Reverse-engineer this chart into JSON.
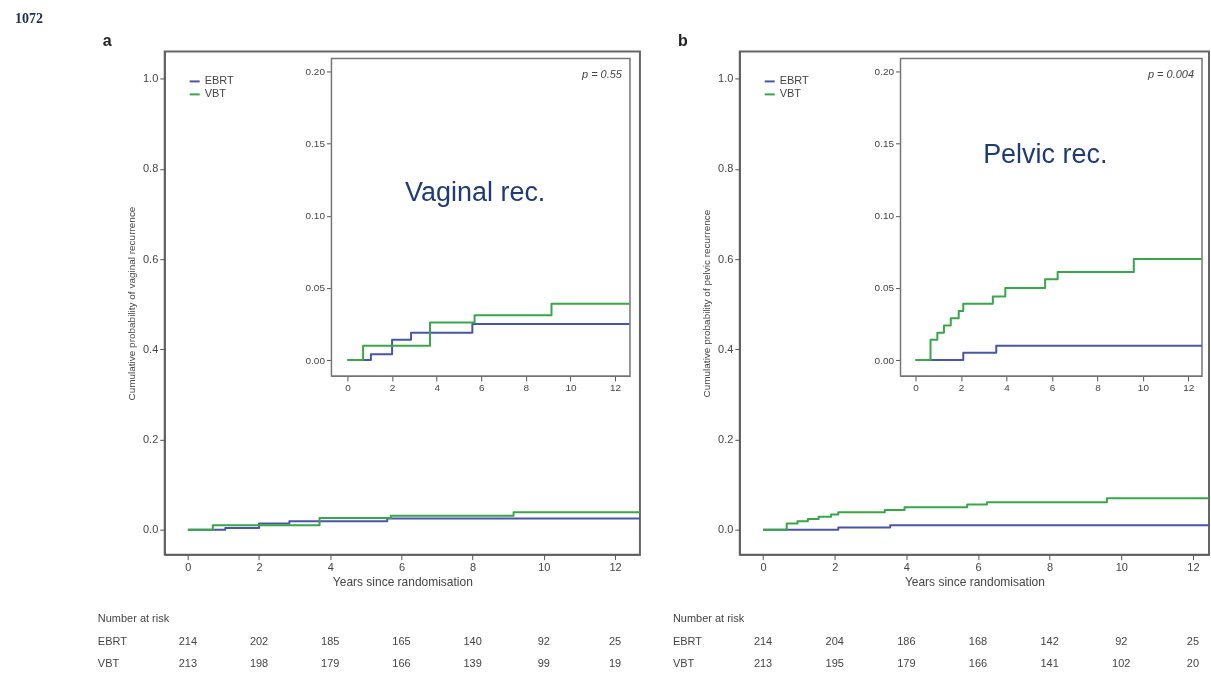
{
  "chart_data": [
    {
      "type": "step",
      "title": "a",
      "xlabel": "Years since randomisation",
      "ylabel": "Cumulative probability of vaginal recurrence",
      "xlim": [
        -0.65,
        12.7
      ],
      "ylim": [
        -0.055,
        1.06
      ],
      "xticks": [
        0,
        2,
        4,
        6,
        8,
        10,
        12
      ],
      "yticks": [
        {
          "value": 0,
          "label": "0.0"
        },
        {
          "value": 0.2,
          "label": "0.2"
        },
        {
          "value": 0.4,
          "label": "0.4"
        },
        {
          "value": 0.6,
          "label": "0.6"
        },
        {
          "value": 0.8,
          "label": "0.8"
        },
        {
          "value": 1,
          "label": "1.0"
        }
      ],
      "legend": "top left",
      "grid": false,
      "annotations": [
        "1072",
        "Number at risk",
        "EBRT",
        "214",
        "202",
        "185",
        "165",
        "140",
        "92",
        "25",
        "VBT",
        "213",
        "198",
        "179",
        "166",
        "139",
        "99",
        "19"
      ],
      "series": [
        {
          "name": "EBRT",
          "color": "#4a55a8",
          "x": [
            0,
            1.05,
            2.0,
            2.85,
            5.6,
            12.7
          ],
          "values": [
            0,
            0.004,
            0.014,
            0.019,
            0.025,
            0.025
          ]
        },
        {
          "name": "VBT",
          "color": "#3aa54a",
          "x": [
            0,
            0.7,
            3.7,
            5.7,
            9.15,
            12.7
          ],
          "values": [
            0,
            0.01,
            0.026,
            0.031,
            0.039,
            0.039
          ]
        }
      ]
    },
    {
      "type": "step",
      "xlim": [
        -0.72,
        12.67
      ],
      "ylim": [
        -0.011,
        0.209
      ],
      "xticks": [
        0,
        2,
        4,
        6,
        8,
        10,
        12
      ],
      "yticks": [
        {
          "value": 0,
          "label": "0.00"
        },
        {
          "value": 0.05,
          "label": "0.05"
        },
        {
          "value": 0.1,
          "label": "0.10"
        },
        {
          "value": 0.15,
          "label": "0.15"
        },
        {
          "value": 0.2,
          "label": "0.20"
        }
      ],
      "grid": false,
      "annotations": [
        "p = 0.55",
        "Vaginal rec."
      ],
      "series": [
        {
          "color": "#4a55a8",
          "x": [
            0,
            1.05,
            2.0,
            2.85,
            5.6,
            12.65
          ],
          "values": [
            0,
            0.004,
            0.014,
            0.019,
            0.025,
            0.025
          ]
        },
        {
          "color": "#3aa54a",
          "x": [
            0,
            0.7,
            3.7,
            5.7,
            9.15,
            12.65
          ],
          "values": [
            0,
            0.01,
            0.026,
            0.031,
            0.039,
            0.039
          ]
        }
      ]
    },
    {
      "type": "step",
      "title": "b",
      "xlabel": "Years since randomisation",
      "ylabel": "Cumulative probability of pelvic recurrence",
      "xlim": [
        -0.65,
        12.45
      ],
      "ylim": [
        -0.055,
        1.06
      ],
      "xticks": [
        0,
        2,
        4,
        6,
        8,
        10,
        12
      ],
      "yticks": [
        {
          "value": 0,
          "label": "0.0"
        },
        {
          "value": 0.2,
          "label": "0.2"
        },
        {
          "value": 0.4,
          "label": "0.4"
        },
        {
          "value": 0.6,
          "label": "0.6"
        },
        {
          "value": 0.8,
          "label": "0.8"
        },
        {
          "value": 1,
          "label": "1.0"
        }
      ],
      "legend": "top left",
      "grid": false,
      "annotations": [
        "Number at risk",
        "EBRT",
        "214",
        "204",
        "186",
        "168",
        "142",
        "92",
        "25",
        "VBT",
        "213",
        "195",
        "179",
        "166",
        "141",
        "102",
        "20"
      ],
      "series": [
        {
          "name": "EBRT",
          "color": "#4a55a8",
          "x": [
            0,
            2.1,
            3.55,
            12.45
          ],
          "values": [
            0,
            0.005,
            0.01,
            0.01
          ]
        },
        {
          "name": "VBT",
          "color": "#3aa54a",
          "x": [
            0,
            0.66,
            0.96,
            1.25,
            1.55,
            1.9,
            2.1,
            3.4,
            3.95,
            5.7,
            6.25,
            9.6,
            12.45
          ],
          "values": [
            0,
            0.014,
            0.019,
            0.024,
            0.029,
            0.034,
            0.039,
            0.044,
            0.05,
            0.056,
            0.061,
            0.07,
            0.07
          ]
        }
      ]
    },
    {
      "type": "step",
      "xlim": [
        -0.66,
        12.6
      ],
      "ylim": [
        -0.011,
        0.209
      ],
      "xticks": [
        0,
        2,
        4,
        6,
        8,
        10,
        12
      ],
      "yticks": [
        {
          "value": 0,
          "label": "0.00"
        },
        {
          "value": 0.05,
          "label": "0.05"
        },
        {
          "value": 0.1,
          "label": "0.10"
        },
        {
          "value": 0.15,
          "label": "0.15"
        },
        {
          "value": 0.2,
          "label": "0.20"
        }
      ],
      "grid": false,
      "annotations": [
        "p = 0.004",
        "Pelvic rec."
      ],
      "series": [
        {
          "color": "#4a55a8",
          "x": [
            0,
            2.1,
            3.55,
            12.6
          ],
          "values": [
            0,
            0.005,
            0.01,
            0.01
          ]
        },
        {
          "color": "#3aa54a",
          "x": [
            0,
            0.66,
            0.96,
            1.25,
            1.55,
            1.9,
            2.1,
            3.4,
            3.95,
            5.7,
            6.25,
            9.6,
            12.6
          ],
          "values": [
            0,
            0.014,
            0.019,
            0.024,
            0.029,
            0.034,
            0.039,
            0.044,
            0.05,
            0.056,
            0.061,
            0.07,
            0.07
          ]
        }
      ]
    }
  ]
}
